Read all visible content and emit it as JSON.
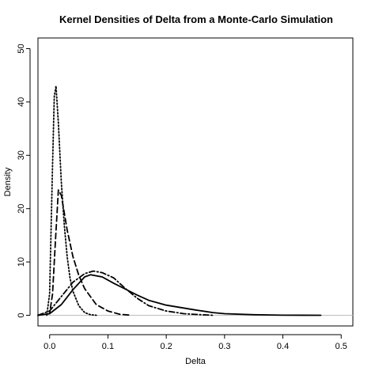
{
  "chart_data": {
    "type": "line",
    "title": "Kernel Densities of Delta from a Monte-Carlo Simulation",
    "xlabel": "Delta",
    "ylabel": "Density",
    "xlim": [
      -0.02,
      0.52
    ],
    "ylim": [
      -2,
      52
    ],
    "x_ticks": [
      0.0,
      0.1,
      0.2,
      0.3,
      0.4,
      0.5
    ],
    "x_tick_labels": [
      "0.0",
      "0.1",
      "0.2",
      "0.3",
      "0.4",
      "0.5"
    ],
    "y_ticks": [
      0,
      10,
      20,
      30,
      40,
      50
    ],
    "y_tick_labels": [
      "0",
      "10",
      "20",
      "30",
      "40",
      "50"
    ],
    "grid": false,
    "baseline_y": 0,
    "series": [
      {
        "line_style": "solid",
        "color": "#000000",
        "points": [
          [
            -0.02,
            0
          ],
          [
            0,
            0.3
          ],
          [
            0.02,
            2
          ],
          [
            0.04,
            4.8
          ],
          [
            0.06,
            7.2
          ],
          [
            0.07,
            7.6
          ],
          [
            0.09,
            7.2
          ],
          [
            0.11,
            6
          ],
          [
            0.13,
            4.9
          ],
          [
            0.15,
            3.8
          ],
          [
            0.17,
            2.8
          ],
          [
            0.2,
            1.9
          ],
          [
            0.25,
            1
          ],
          [
            0.28,
            0.5
          ],
          [
            0.3,
            0.3
          ],
          [
            0.35,
            0.1
          ],
          [
            0.4,
            0.02
          ],
          [
            0.465,
            0
          ]
        ]
      },
      {
        "line_style": "dashed",
        "color": "#000000",
        "points": [
          [
            -0.02,
            0
          ],
          [
            0,
            0.3
          ],
          [
            0.005,
            4
          ],
          [
            0.01,
            14
          ],
          [
            0.015,
            23.5
          ],
          [
            0.02,
            22.5
          ],
          [
            0.03,
            16
          ],
          [
            0.04,
            11
          ],
          [
            0.05,
            7.5
          ],
          [
            0.06,
            5
          ],
          [
            0.07,
            3.5
          ],
          [
            0.08,
            2
          ],
          [
            0.1,
            0.8
          ],
          [
            0.12,
            0.2
          ],
          [
            0.14,
            0
          ]
        ]
      },
      {
        "line_style": "dotted",
        "color": "#000000",
        "points": [
          [
            -0.005,
            0
          ],
          [
            0,
            4
          ],
          [
            0.005,
            28
          ],
          [
            0.008,
            41
          ],
          [
            0.011,
            43
          ],
          [
            0.015,
            36
          ],
          [
            0.02,
            25
          ],
          [
            0.025,
            17
          ],
          [
            0.03,
            11
          ],
          [
            0.035,
            7
          ],
          [
            0.04,
            4.5
          ],
          [
            0.05,
            1.8
          ],
          [
            0.06,
            0.5
          ],
          [
            0.07,
            0.1
          ],
          [
            0.08,
            0
          ]
        ]
      },
      {
        "line_style": "dashdot",
        "color": "#000000",
        "points": [
          [
            -0.02,
            0
          ],
          [
            0,
            0.8
          ],
          [
            0.02,
            3.5
          ],
          [
            0.04,
            6.2
          ],
          [
            0.06,
            7.8
          ],
          [
            0.075,
            8.3
          ],
          [
            0.09,
            8
          ],
          [
            0.11,
            7
          ],
          [
            0.13,
            5
          ],
          [
            0.15,
            3.2
          ],
          [
            0.17,
            1.8
          ],
          [
            0.2,
            0.8
          ],
          [
            0.23,
            0.3
          ],
          [
            0.26,
            0.1
          ],
          [
            0.28,
            0
          ]
        ]
      }
    ]
  }
}
